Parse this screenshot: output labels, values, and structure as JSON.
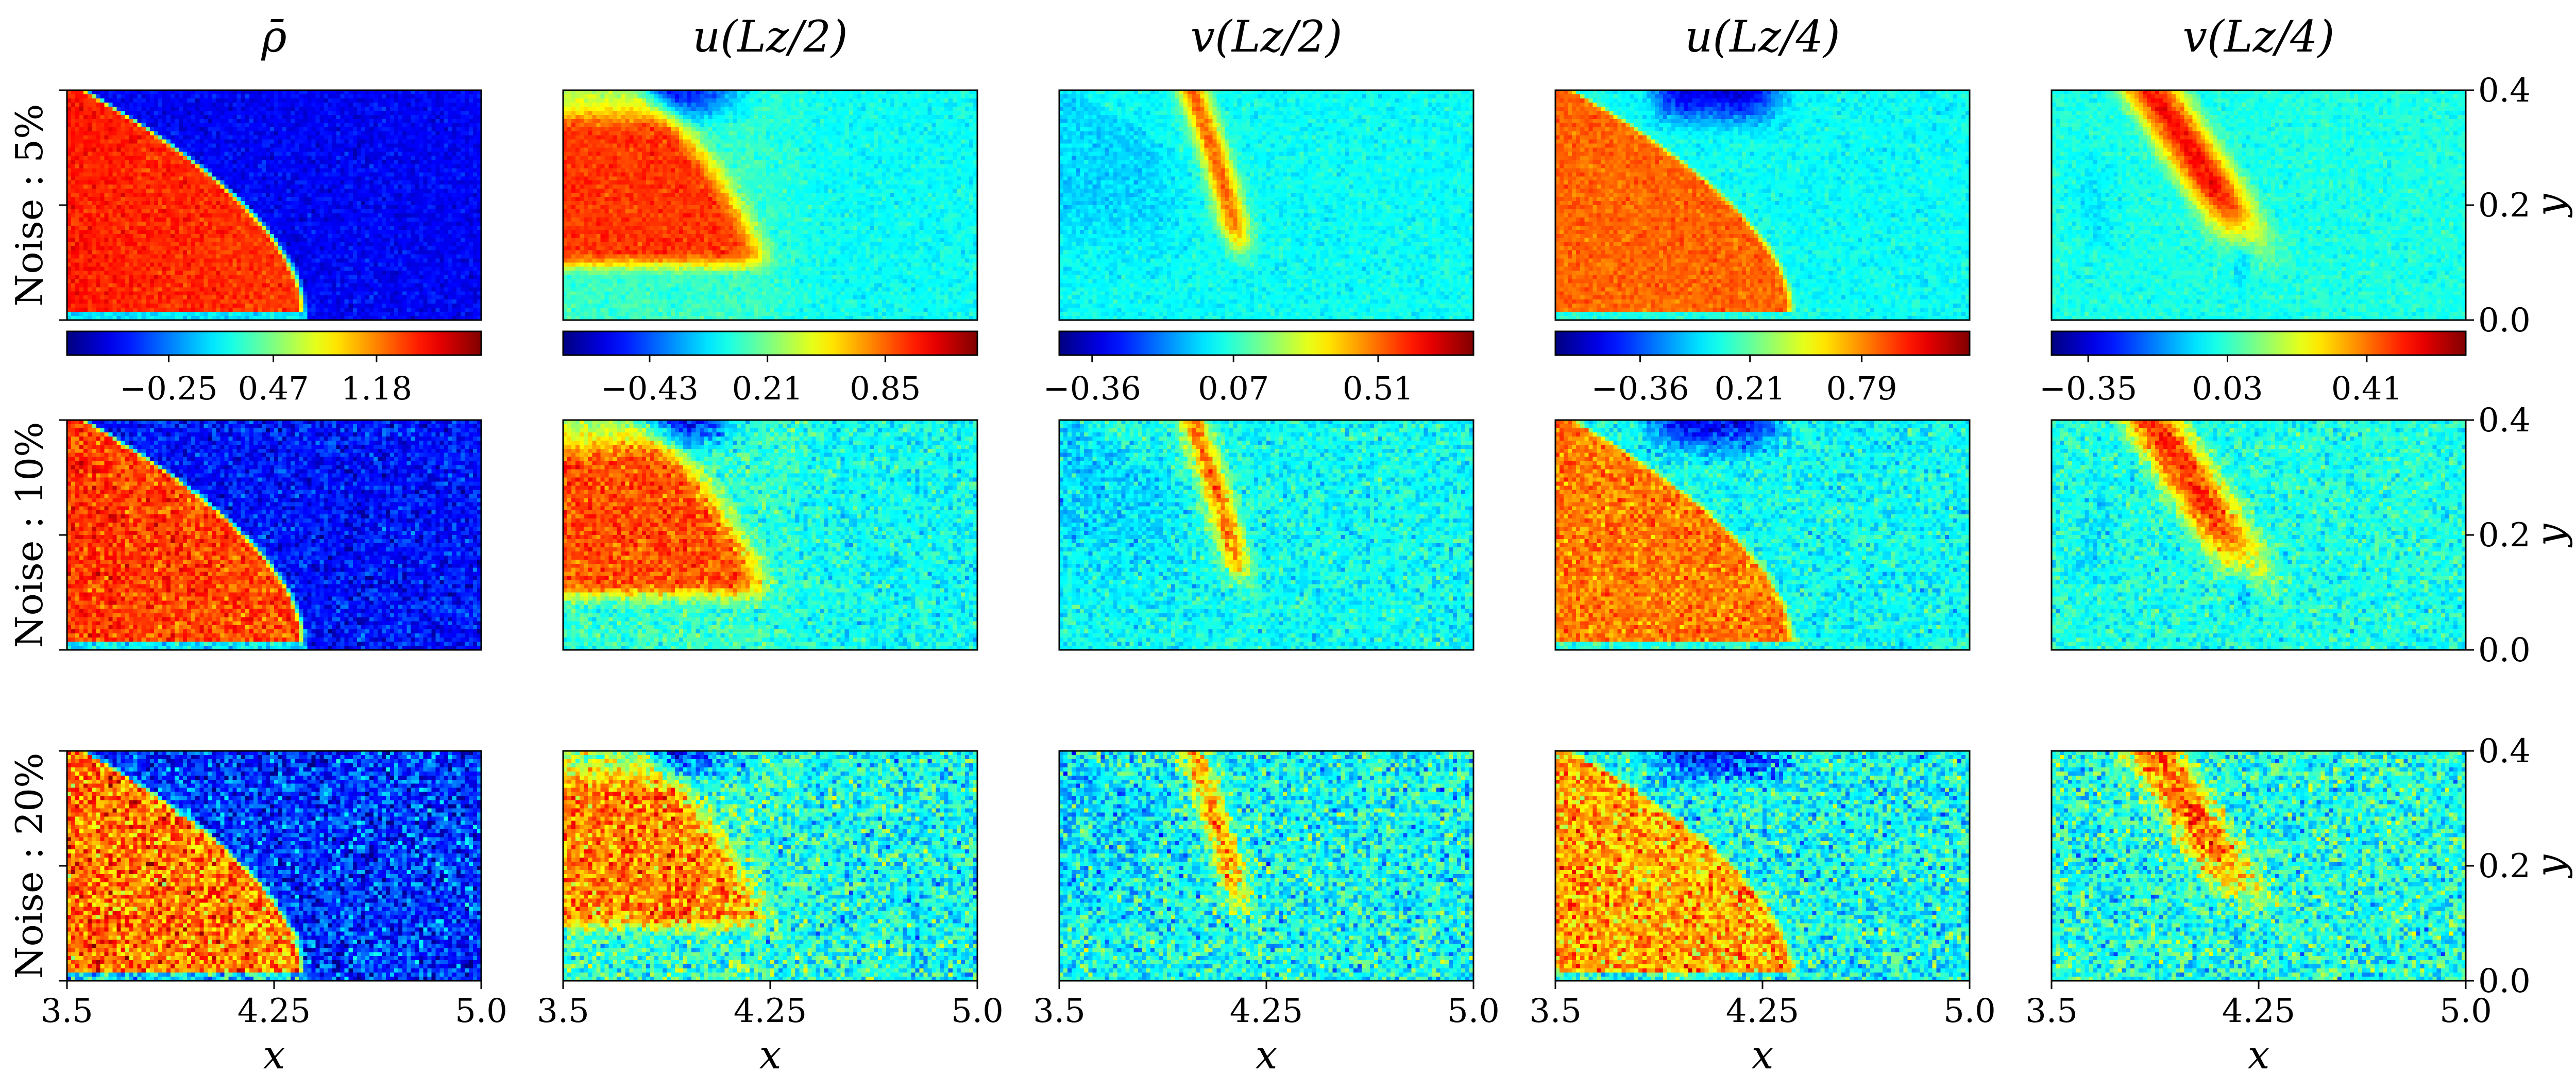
{
  "chart_data": {
    "type": "heatmap",
    "columns": [
      {
        "title": "ρ̄",
        "cbar_ticks": [
          "−0.25",
          "0.47",
          "1.18"
        ],
        "cbar_tick_values": [
          -0.25,
          0.47,
          1.18
        ],
        "vmin": -0.95,
        "vmax": 1.9
      },
      {
        "title": "u(Lz/2)",
        "cbar_ticks": [
          "−0.43",
          "0.21",
          "0.85"
        ],
        "cbar_tick_values": [
          -0.43,
          0.21,
          0.85
        ],
        "vmin": -0.9,
        "vmax": 1.35
      },
      {
        "title": "v(Lz/2)",
        "cbar_ticks": [
          "−0.36",
          "0.07",
          "0.51"
        ],
        "cbar_tick_values": [
          -0.36,
          0.07,
          0.51
        ],
        "vmin": -0.46,
        "vmax": 0.8
      },
      {
        "title": "u(Lz/4)",
        "cbar_ticks": [
          "−0.36",
          "0.21",
          "0.79"
        ],
        "cbar_tick_values": [
          -0.36,
          0.21,
          0.79
        ],
        "vmin": -0.8,
        "vmax": 1.35
      },
      {
        "title": "v(Lz/4)",
        "cbar_ticks": [
          "−0.35",
          "0.03",
          "0.41"
        ],
        "cbar_tick_values": [
          -0.35,
          0.03,
          0.41
        ],
        "vmin": -0.45,
        "vmax": 0.68
      }
    ],
    "rows": [
      {
        "label": "Noise : 5%",
        "noise": 0.05
      },
      {
        "label": "Noise : 10%",
        "noise": 0.1
      },
      {
        "label": "Noise : 20%",
        "noise": 0.2
      }
    ],
    "xlabel": "x",
    "ylabel": "y",
    "x_ticks": [
      "3.5",
      "4.25",
      "5.0"
    ],
    "x_tick_values": [
      3.5,
      4.25,
      5.0
    ],
    "y_ticks": [
      "0.0",
      "0.2",
      "0.4"
    ],
    "y_tick_values": [
      0.0,
      0.2,
      0.4
    ],
    "xlim": [
      3.5,
      5.0
    ],
    "ylim": [
      0.0,
      0.4
    ],
    "colormap": "jet",
    "colorbar_position": "below first row"
  }
}
